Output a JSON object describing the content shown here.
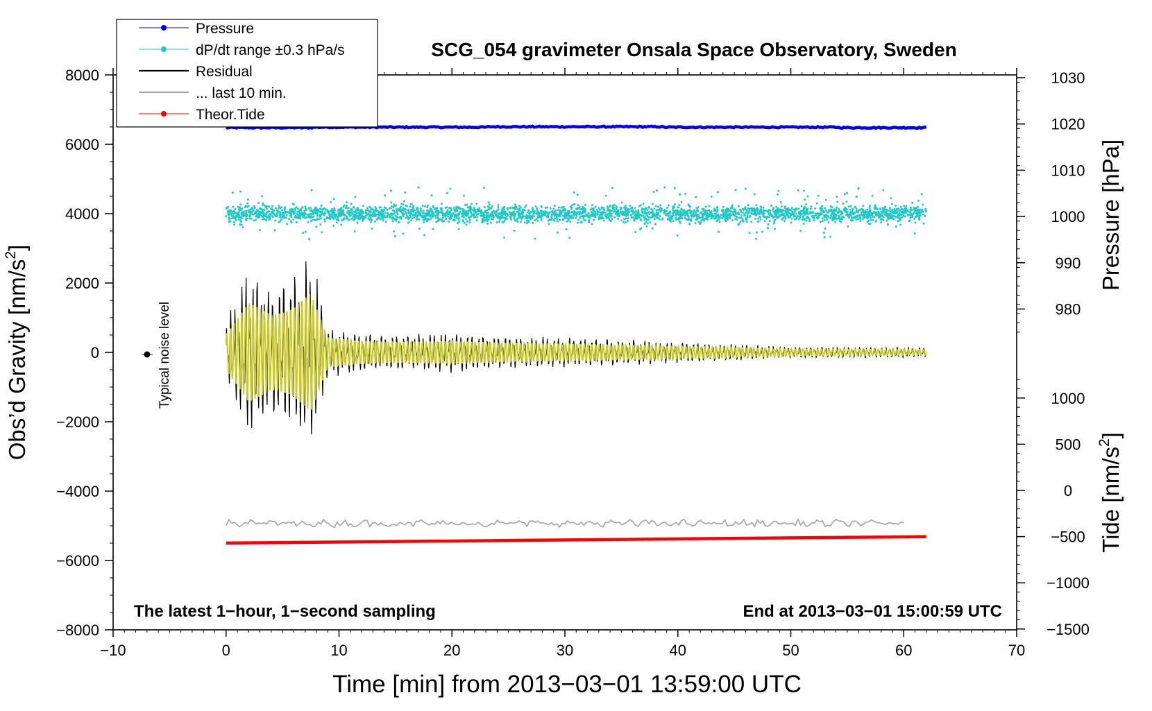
{
  "chart_data": {
    "type": "line",
    "title": "SCG_054 gravimeter Onsala Space Observatory, Sweden",
    "xlabel": "Time [min] from 2013−03−01 13:59:00 UTC",
    "ylabel_left_main": "Obs’d Gravity [nm/s",
    "ylabel_left_sup": "2",
    "ylabel_left_end": "]",
    "ylabel_right_top": "Pressure [hPa]",
    "ylabel_right_bottom_main": "Tide [nm/s",
    "ylabel_right_bottom_sup": "2",
    "ylabel_right_bottom_end": "]",
    "xlim": [
      -10,
      70
    ],
    "ylim": [
      -8000,
      8000
    ],
    "x_ticks": [
      -10,
      0,
      10,
      20,
      30,
      40,
      50,
      60,
      70
    ],
    "x_tick_labels": [
      "−10",
      "0",
      "10",
      "20",
      "30",
      "40",
      "50",
      "60",
      "70"
    ],
    "y_ticks": [
      8000,
      6000,
      4000,
      2000,
      0,
      -2000,
      -4000,
      -6000,
      -8000
    ],
    "y_tick_labels": [
      "8000",
      "6000",
      "4000",
      "2000",
      "0",
      "−2000",
      "−4000",
      "−6000",
      "−8000"
    ],
    "pressure_axis": {
      "ticks": [
        1030,
        1020,
        1010,
        1000,
        990,
        980
      ],
      "tick_labels": [
        "1030",
        "1020",
        "1010",
        "1000",
        "990",
        "980"
      ]
    },
    "tide_axis": {
      "ticks": [
        1000,
        500,
        0,
        -500,
        -1000,
        -1500
      ],
      "tick_labels": [
        "1000",
        "500",
        "0",
        "−500",
        "−1000",
        "−1500"
      ]
    },
    "legend": {
      "position": "top-left",
      "entries": [
        {
          "label": "Pressure",
          "color": "#0000ff",
          "marker": "dot"
        },
        {
          "label": "dP/dt range ±0.3 hPa/s",
          "color": "#20c8c8",
          "marker": "dot"
        },
        {
          "label": "Residual",
          "color": "#000000",
          "marker": "line"
        },
        {
          "label": "... last 10 min.",
          "color": "#aaaaaa",
          "marker": "line"
        },
        {
          "label": "Theor.Tide",
          "color": "#ff0000",
          "marker": "dot"
        }
      ]
    },
    "series": [
      {
        "name": "Pressure",
        "axis": "pressure",
        "color": "#0000ff",
        "x_range": [
          0,
          62
        ],
        "values": [
          1019.2,
          1019.3,
          1019.4,
          1019.3,
          1019.2
        ]
      },
      {
        "name": "dP/dt range ±0.3 hPa/s",
        "color": "#20c8c8",
        "x_range": [
          0,
          62
        ],
        "center": 4000,
        "values_band": [
          3300,
          4700
        ]
      },
      {
        "name": "Residual",
        "color": "#000000",
        "x_range": [
          0,
          62
        ],
        "envelope_x": [
          0,
          2,
          4,
          6,
          7.5,
          9,
          12,
          15,
          20,
          25,
          30,
          35,
          40,
          50,
          62
        ],
        "envelope_y": [
          1000,
          2600,
          2000,
          2400,
          3100,
          800,
          600,
          550,
          600,
          500,
          450,
          400,
          320,
          180,
          150
        ]
      },
      {
        "name": "... last 10 min.",
        "color": "#aaaaaa",
        "x_range": [
          0,
          60
        ],
        "center": -4930
      },
      {
        "name": "Theor.Tide",
        "axis": "tide",
        "color": "#ff0000",
        "x": [
          0,
          62
        ],
        "values": [
          -570,
          -500
        ]
      }
    ],
    "annotations": {
      "noise_label": "Typical noise level",
      "noise_marker": {
        "x": -7,
        "y": 0
      },
      "bottom_left": "The latest 1−hour, 1−second sampling",
      "bottom_right": "End at 2013−03−01 15:00:59 UTC"
    },
    "grid": false
  }
}
